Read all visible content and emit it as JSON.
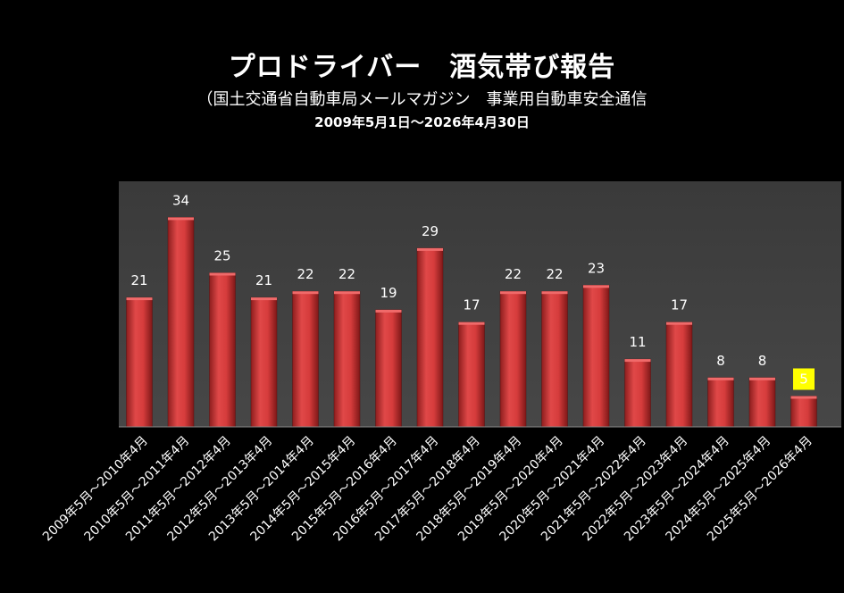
{
  "chart_data": {
    "type": "bar",
    "title": "プロドライバー　酒気帯び報告",
    "subtitle": "（国土交通省自動車局メールマガジン　事業用自動車安全通信",
    "period": "2009年5月1日～2026年4月30日",
    "categories": [
      "2009年5月～2010年4月",
      "2010年5月～2011年4月",
      "2011年5月～2012年4月",
      "2012年5月～2013年4月",
      "2013年5月～2014年4月",
      "2014年5月～2015年4月",
      "2015年5月～2016年4月",
      "2016年5月～2017年4月",
      "2017年5月～2018年4月",
      "2018年5月～2019年4月",
      "2019年5月～2020年4月",
      "2020年5月～2021年4月",
      "2021年5月～2022年4月",
      "2022年5月～2023年4月",
      "2023年5月～2024年4月",
      "2024年5月～2025年4月",
      "2025年5月～2026年4月"
    ],
    "values": [
      21,
      34,
      25,
      21,
      22,
      22,
      19,
      29,
      17,
      22,
      22,
      23,
      11,
      17,
      8,
      8,
      5
    ],
    "ylim": [
      0,
      40
    ],
    "highlight_index": 16,
    "grid": false,
    "legend": "none",
    "colors": {
      "bar": "#c23b3b",
      "plot_bg": "#404040",
      "highlight_label_bg": "#ffff00"
    }
  }
}
